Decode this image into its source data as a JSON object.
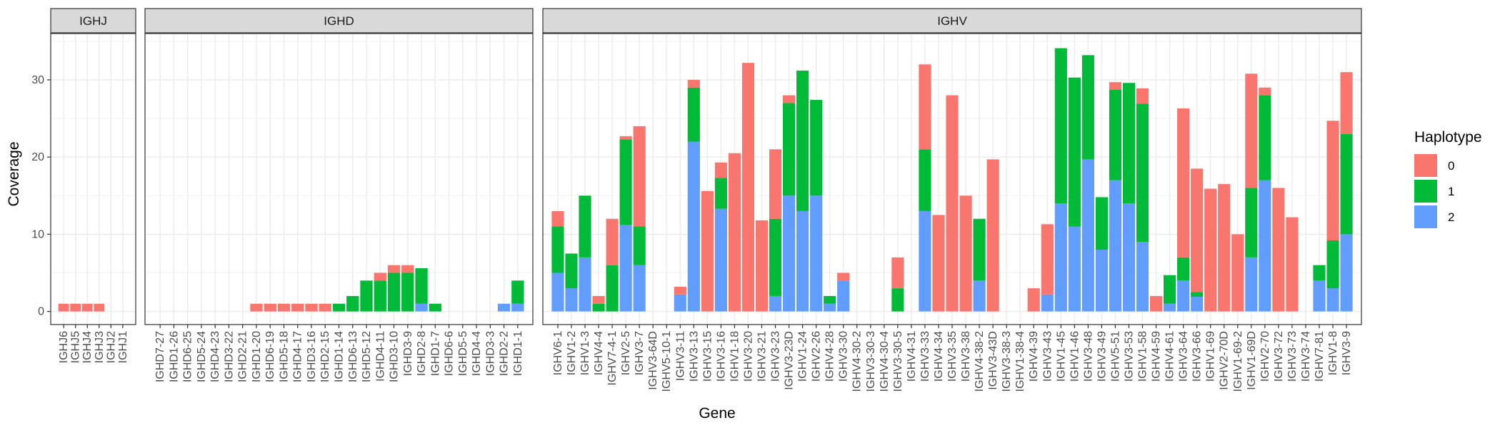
{
  "chart_data": {
    "type": "bar",
    "stacked": true,
    "ylabel": "Coverage",
    "xlabel": "Gene",
    "ylim": [
      -1.7,
      36
    ],
    "yticks": [
      0,
      10,
      20,
      30
    ],
    "grid": true,
    "legend": {
      "title": "Haplotype",
      "placement": "right",
      "entries": [
        {
          "label": "0",
          "color": "#F8766D"
        },
        {
          "label": "1",
          "color": "#00BA38"
        },
        {
          "label": "2",
          "color": "#619CFF"
        }
      ]
    },
    "panels": [
      {
        "name": "IGHJ",
        "genes": [
          {
            "g": "IGHJ6",
            "h0": 1,
            "h1": 0,
            "h2": 0
          },
          {
            "g": "IGHJ5",
            "h0": 1,
            "h1": 0,
            "h2": 0
          },
          {
            "g": "IGHJ4",
            "h0": 1,
            "h1": 0,
            "h2": 0
          },
          {
            "g": "IGHJ3",
            "h0": 1,
            "h1": 0,
            "h2": 0
          },
          {
            "g": "IGHJ2",
            "h0": 0,
            "h1": 0,
            "h2": 0
          },
          {
            "g": "IGHJ1",
            "h0": 0,
            "h1": 0,
            "h2": 0
          }
        ]
      },
      {
        "name": "IGHD",
        "genes": [
          {
            "g": "IGHD7-27",
            "h0": 0,
            "h1": 0,
            "h2": 0
          },
          {
            "g": "IGHD1-26",
            "h0": 0,
            "h1": 0,
            "h2": 0
          },
          {
            "g": "IGHD6-25",
            "h0": 0,
            "h1": 0,
            "h2": 0
          },
          {
            "g": "IGHD5-24",
            "h0": 0,
            "h1": 0,
            "h2": 0
          },
          {
            "g": "IGHD4-23",
            "h0": 0,
            "h1": 0,
            "h2": 0
          },
          {
            "g": "IGHD3-22",
            "h0": 0,
            "h1": 0,
            "h2": 0
          },
          {
            "g": "IGHD2-21",
            "h0": 0,
            "h1": 0,
            "h2": 0
          },
          {
            "g": "IGHD1-20",
            "h0": 1,
            "h1": 0,
            "h2": 0
          },
          {
            "g": "IGHD6-19",
            "h0": 1,
            "h1": 0,
            "h2": 0
          },
          {
            "g": "IGHD5-18",
            "h0": 1,
            "h1": 0,
            "h2": 0
          },
          {
            "g": "IGHD4-17",
            "h0": 1,
            "h1": 0,
            "h2": 0
          },
          {
            "g": "IGHD3-16",
            "h0": 1,
            "h1": 0,
            "h2": 0
          },
          {
            "g": "IGHD2-15",
            "h0": 1,
            "h1": 0,
            "h2": 0
          },
          {
            "g": "IGHD1-14",
            "h0": 0,
            "h1": 1,
            "h2": 0
          },
          {
            "g": "IGHD6-13",
            "h0": 0,
            "h1": 2,
            "h2": 0
          },
          {
            "g": "IGHD5-12",
            "h0": 0,
            "h1": 4,
            "h2": 0
          },
          {
            "g": "IGHD4-11",
            "h0": 1,
            "h1": 4,
            "h2": 0
          },
          {
            "g": "IGHD3-10",
            "h0": 1,
            "h1": 5,
            "h2": 0
          },
          {
            "g": "IGHD3-9",
            "h0": 1,
            "h1": 5,
            "h2": 0
          },
          {
            "g": "IGHD2-8",
            "h0": 0,
            "h1": 4.6,
            "h2": 1
          },
          {
            "g": "IGHD1-7",
            "h0": 0,
            "h1": 1,
            "h2": 0
          },
          {
            "g": "IGHD6-6",
            "h0": 0,
            "h1": 0,
            "h2": 0
          },
          {
            "g": "IGHD5-5",
            "h0": 0,
            "h1": 0,
            "h2": 0
          },
          {
            "g": "IGHD4-4",
            "h0": 0,
            "h1": 0,
            "h2": 0
          },
          {
            "g": "IGHD3-3",
            "h0": 0,
            "h1": 0,
            "h2": 0
          },
          {
            "g": "IGHD2-2",
            "h0": 0,
            "h1": 0,
            "h2": 1
          },
          {
            "g": "IGHD1-1",
            "h0": 0,
            "h1": 3,
            "h2": 1
          }
        ]
      },
      {
        "name": "IGHV",
        "genes": [
          {
            "g": "IGHV6-1",
            "h0": 2,
            "h1": 6,
            "h2": 5
          },
          {
            "g": "IGHV1-2",
            "h0": 0,
            "h1": 4.5,
            "h2": 3
          },
          {
            "g": "IGHV1-3",
            "h0": 0,
            "h1": 8,
            "h2": 7
          },
          {
            "g": "IGHV4-4",
            "h0": 1,
            "h1": 1,
            "h2": 0
          },
          {
            "g": "IGHV7-4-1",
            "h0": 6,
            "h1": 6,
            "h2": 0
          },
          {
            "g": "IGHV2-5",
            "h0": 0.4,
            "h1": 11.1,
            "h2": 11.2
          },
          {
            "g": "IGHV3-7",
            "h0": 13,
            "h1": 5,
            "h2": 6
          },
          {
            "g": "IGHV3-64D",
            "h0": 0,
            "h1": 0,
            "h2": 0
          },
          {
            "g": "IGHV5-10-1",
            "h0": 0,
            "h1": 0,
            "h2": 0
          },
          {
            "g": "IGHV3-11",
            "h0": 1,
            "h1": 0,
            "h2": 2.2
          },
          {
            "g": "IGHV3-13",
            "h0": 1,
            "h1": 7,
            "h2": 22
          },
          {
            "g": "IGHV3-15",
            "h0": 15.6,
            "h1": 0,
            "h2": 0
          },
          {
            "g": "IGHV3-16",
            "h0": 2,
            "h1": 4,
            "h2": 13.3
          },
          {
            "g": "IGHV1-18",
            "h0": 20.5,
            "h1": 0,
            "h2": 0
          },
          {
            "g": "IGHV3-20",
            "h0": 32.2,
            "h1": 0,
            "h2": 0
          },
          {
            "g": "IGHV3-21",
            "h0": 11.8,
            "h1": 0,
            "h2": 0
          },
          {
            "g": "IGHV3-23",
            "h0": 9,
            "h1": 10,
            "h2": 2
          },
          {
            "g": "IGHV3-23D",
            "h0": 1,
            "h1": 12,
            "h2": 15
          },
          {
            "g": "IGHV1-24",
            "h0": 0,
            "h1": 18.2,
            "h2": 13
          },
          {
            "g": "IGHV2-26",
            "h0": 0,
            "h1": 12.4,
            "h2": 15
          },
          {
            "g": "IGHV4-28",
            "h0": 0,
            "h1": 1,
            "h2": 1
          },
          {
            "g": "IGHV3-30",
            "h0": 1,
            "h1": 0,
            "h2": 4
          },
          {
            "g": "IGHV4-30-2",
            "h0": 0,
            "h1": 0,
            "h2": 0
          },
          {
            "g": "IGHV3-30-3",
            "h0": 0,
            "h1": 0,
            "h2": 0
          },
          {
            "g": "IGHV4-30-4",
            "h0": 0,
            "h1": 0,
            "h2": 0
          },
          {
            "g": "IGHV3-30-5",
            "h0": 4,
            "h1": 3,
            "h2": 0
          },
          {
            "g": "IGHV4-31",
            "h0": 0,
            "h1": 0,
            "h2": 0
          },
          {
            "g": "IGHV3-33",
            "h0": 11,
            "h1": 8,
            "h2": 13
          },
          {
            "g": "IGHV4-34",
            "h0": 12.5,
            "h1": 0,
            "h2": 0
          },
          {
            "g": "IGHV3-35",
            "h0": 28,
            "h1": 0,
            "h2": 0
          },
          {
            "g": "IGHV3-38",
            "h0": 15,
            "h1": 0,
            "h2": 0
          },
          {
            "g": "IGHV4-38-2",
            "h0": 0,
            "h1": 8,
            "h2": 4
          },
          {
            "g": "IGHV3-43D",
            "h0": 19.7,
            "h1": 0,
            "h2": 0
          },
          {
            "g": "IGHV3-38-3",
            "h0": 0,
            "h1": 0,
            "h2": 0
          },
          {
            "g": "IGHV1-38-4",
            "h0": 0,
            "h1": 0,
            "h2": 0
          },
          {
            "g": "IGHV4-39",
            "h0": 3,
            "h1": 0,
            "h2": 0
          },
          {
            "g": "IGHV3-43",
            "h0": 9.1,
            "h1": 0,
            "h2": 2.2
          },
          {
            "g": "IGHV1-45",
            "h0": 0,
            "h1": 20.1,
            "h2": 14
          },
          {
            "g": "IGHV1-46",
            "h0": 0,
            "h1": 19.3,
            "h2": 11
          },
          {
            "g": "IGHV3-48",
            "h0": 0,
            "h1": 13.5,
            "h2": 19.7
          },
          {
            "g": "IGHV3-49",
            "h0": 0,
            "h1": 6.8,
            "h2": 8
          },
          {
            "g": "IGHV5-51",
            "h0": 1,
            "h1": 11.7,
            "h2": 17
          },
          {
            "g": "IGHV3-53",
            "h0": 0,
            "h1": 15.6,
            "h2": 14
          },
          {
            "g": "IGHV1-58",
            "h0": 2,
            "h1": 17.9,
            "h2": 9
          },
          {
            "g": "IGHV4-59",
            "h0": 2,
            "h1": 0,
            "h2": 0
          },
          {
            "g": "IGHV4-61",
            "h0": 0,
            "h1": 3.7,
            "h2": 1
          },
          {
            "g": "IGHV3-64",
            "h0": 19.3,
            "h1": 3,
            "h2": 4
          },
          {
            "g": "IGHV3-66",
            "h0": 16,
            "h1": 0.6,
            "h2": 1.9
          },
          {
            "g": "IGHV1-69",
            "h0": 15.9,
            "h1": 0,
            "h2": 0
          },
          {
            "g": "IGHV2-70D",
            "h0": 16.5,
            "h1": 0,
            "h2": 0
          },
          {
            "g": "IGHV1-69-2",
            "h0": 10,
            "h1": 0,
            "h2": 0
          },
          {
            "g": "IGHV1-69D",
            "h0": 14.8,
            "h1": 9,
            "h2": 7
          },
          {
            "g": "IGHV2-70",
            "h0": 1,
            "h1": 11,
            "h2": 17
          },
          {
            "g": "IGHV3-72",
            "h0": 16,
            "h1": 0,
            "h2": 0
          },
          {
            "g": "IGHV3-73",
            "h0": 12.2,
            "h1": 0,
            "h2": 0
          },
          {
            "g": "IGHV3-74",
            "h0": 0,
            "h1": 0,
            "h2": 0
          },
          {
            "g": "IGHV7-81",
            "h0": 0,
            "h1": 2,
            "h2": 4
          },
          {
            "g": "IGHV1-8",
            "h0": 15.5,
            "h1": 6.2,
            "h2": 3
          },
          {
            "g": "IGHV3-9",
            "h0": 8,
            "h1": 13,
            "h2": 10
          }
        ]
      }
    ]
  }
}
